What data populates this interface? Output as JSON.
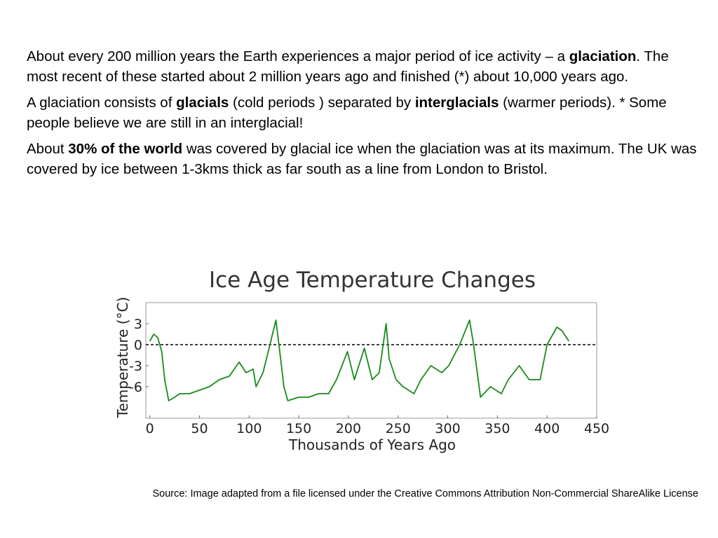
{
  "paragraphs": [
    [
      {
        "text": "About every 200 million years the Earth experiences a major period of ice activity – a ",
        "bold": false
      },
      {
        "text": "glaciation",
        "bold": true
      },
      {
        "text": ". The most recent of these started about 2 million years ago and finished (*) about 10,000 years ago.",
        "bold": false
      }
    ],
    [
      {
        "text": "A glaciation consists of ",
        "bold": false
      },
      {
        "text": "glacials",
        "bold": true
      },
      {
        "text": " (cold periods ) separated by ",
        "bold": false
      },
      {
        "text": "interglacials",
        "bold": true
      },
      {
        "text": " (warmer periods). * Some people believe we are still in an interglacial!",
        "bold": false
      }
    ],
    [
      {
        "text": "About ",
        "bold": false
      },
      {
        "text": "30% of the world",
        "bold": true
      },
      {
        "text": " was covered by glacial ice when the glaciation was at its maximum. The UK was covered by ice between 1-3kms thick as far south as a line from London to Bristol.",
        "bold": false
      }
    ]
  ],
  "source": "Source: Image adapted from a file licensed under the Creative Commons  Attribution Non-Commercial ShareAlike License",
  "chart_data": {
    "type": "line",
    "title": "Ice Age Temperature Changes",
    "x_label": "Thousands of Years Ago",
    "y_label": "Temperature (°C)",
    "x": [
      0,
      4,
      8,
      12,
      15,
      19,
      25,
      30,
      40,
      50,
      60,
      70,
      80,
      90,
      97,
      104,
      107,
      114,
      121,
      127,
      130,
      135,
      139,
      150,
      160,
      170,
      180,
      188,
      199,
      206,
      216,
      224,
      231,
      238,
      241,
      248,
      255,
      266,
      273,
      283,
      294,
      301,
      312,
      322,
      326,
      333,
      343,
      354,
      361,
      372,
      382,
      393,
      400,
      410,
      415,
      422
    ],
    "values": [
      0.5,
      1.5,
      1,
      -1,
      -5,
      -8,
      -7.5,
      -7,
      -7,
      -6.5,
      -6,
      -5,
      -4.5,
      -2.5,
      -4,
      -3.5,
      -6,
      -4,
      0,
      3.5,
      0,
      -6,
      -8,
      -7.5,
      -7.5,
      -7,
      -7,
      -5,
      -1,
      -5,
      -0.5,
      -5,
      -4,
      3,
      -2,
      -5,
      -6,
      -7,
      -5,
      -3,
      -4,
      -3,
      0,
      3.5,
      0,
      -7.5,
      -6,
      -7,
      -5,
      -3,
      -5,
      -5,
      0,
      2.5,
      2,
      0.5
    ],
    "color": "#1a8a1a",
    "xlim": [
      -4,
      450
    ],
    "ylim": [
      -10.5,
      6
    ],
    "xticks": [
      0,
      50,
      100,
      150,
      200,
      250,
      300,
      350,
      400,
      450
    ],
    "yticks": [
      3,
      0,
      -3,
      -6
    ],
    "reference_y": 0
  }
}
